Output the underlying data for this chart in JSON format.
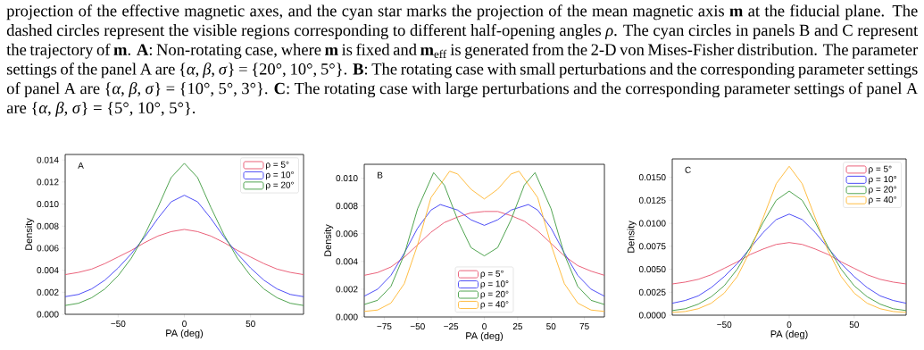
{
  "chart_data": [
    {
      "type": "other",
      "annotations": [
        "projection of the effective magnetic axes, and the cyan star marks the projection of the mean magnetic axis **m** at the fiducial plane. The dashed circles represent the visible regions corresponding to different half-opening angles *ρ*. The cyan circles in panels B and C represent the trajectory of **m**. **A**: Non-rotating case, where **m** is fixed and **m**$_{eff}$ is generated from the 2-D von Mises-Fisher distribution. The parameter settings of the panel A are {*α*, *β*, *σ*} = {20°, 10°, 5°}. **B**: The rotating case with small perturbations and the corresponding parameter settings of panel A are {*α*, *β*, *σ*} = {10°, 5°, 3°}. **C**: The rotating case with large perturbations and the corresponding parameter settings of panel A are {*α*, *β*, *σ*} = {5°, 10°, 5°}."
      ]
    },
    {
      "type": "line",
      "xlabel": "PA (deg)",
      "ylabel": "Density",
      "annotations": [
        "A"
      ],
      "legend": "top right",
      "x": [
        -90,
        -80,
        -70,
        -60,
        -50,
        -40,
        -30,
        -20,
        -10,
        0,
        10,
        20,
        30,
        40,
        50,
        60,
        70,
        80,
        90
      ],
      "xlim": [
        -90,
        90
      ],
      "xticks": [
        {
          "value": -50,
          "label": "−50"
        },
        0,
        50
      ],
      "ylim": [
        0,
        0.0145
      ],
      "yticks": [
        {
          "value": 0,
          "label": "0.000"
        },
        {
          "value": 0.002,
          "label": "0.002"
        },
        {
          "value": 0.004,
          "label": "0.004"
        },
        {
          "value": 0.006,
          "label": "0.006"
        },
        {
          "value": 0.008,
          "label": "0.008"
        },
        {
          "value": 0.01,
          "label": "0.010"
        },
        {
          "value": 0.012,
          "label": "0.012"
        },
        {
          "value": 0.014,
          "label": "0.014"
        }
      ],
      "series": [
        {
          "name": "ρ = 5°",
          "color": "#e8506b",
          "values": [
            0.0036,
            0.0038,
            0.0041,
            0.0046,
            0.0052,
            0.0058,
            0.0065,
            0.0071,
            0.0075,
            0.0077,
            0.0075,
            0.0071,
            0.0065,
            0.0058,
            0.0052,
            0.0046,
            0.0041,
            0.0038,
            0.0036
          ]
        },
        {
          "name": "ρ = 10°",
          "color": "#3b3bf5",
          "values": [
            0.0016,
            0.0018,
            0.0023,
            0.0031,
            0.0042,
            0.0055,
            0.007,
            0.0087,
            0.0102,
            0.0108,
            0.0102,
            0.0087,
            0.007,
            0.0055,
            0.0042,
            0.0031,
            0.0023,
            0.0018,
            0.0016
          ]
        },
        {
          "name": "ρ = 20°",
          "color": "#3d9a3d",
          "values": [
            0.0008,
            0.001,
            0.0015,
            0.0023,
            0.0035,
            0.0051,
            0.0072,
            0.0097,
            0.0124,
            0.0137,
            0.0124,
            0.0097,
            0.0072,
            0.0051,
            0.0035,
            0.0023,
            0.0015,
            0.001,
            0.0008
          ]
        }
      ]
    },
    {
      "type": "line",
      "xlabel": "PA (deg)",
      "ylabel": "Density",
      "annotations": [
        "B"
      ],
      "legend": "bottom",
      "x": [
        -90,
        -80,
        -70,
        -60,
        -50,
        -40,
        -30,
        -20,
        -10,
        0,
        10,
        20,
        30,
        40,
        50,
        60,
        70,
        80,
        90
      ],
      "xlim": [
        -90,
        90
      ],
      "xticks": [
        {
          "value": -75,
          "label": "−75"
        },
        {
          "value": -50,
          "label": "−50"
        },
        {
          "value": -25,
          "label": "−25"
        },
        0,
        25,
        50,
        75
      ],
      "ylim": [
        0,
        0.011
      ],
      "yticks": [
        {
          "value": 0,
          "label": "0.000"
        },
        {
          "value": 0.002,
          "label": "0.002"
        },
        {
          "value": 0.004,
          "label": "0.004"
        },
        {
          "value": 0.006,
          "label": "0.006"
        },
        {
          "value": 0.008,
          "label": "0.008"
        },
        {
          "value": 0.01,
          "label": "0.010"
        }
      ],
      "series": [
        {
          "name": "ρ = 5°",
          "color": "#e8506b",
          "values": [
            0.003,
            0.0032,
            0.0036,
            0.0043,
            0.0052,
            0.0061,
            0.0068,
            0.0072,
            0.0075,
            0.0076,
            0.0076,
            0.0073,
            0.0069,
            0.0062,
            0.0053,
            0.0044,
            0.0037,
            0.0033,
            0.003
          ]
        },
        {
          "name": "ρ = 10°",
          "color": "#3b3bf5",
          "x": [
            -90,
            -80,
            -70,
            -60,
            -50,
            -40,
            -33,
            -20,
            -10,
            0,
            10,
            20,
            33,
            40,
            50,
            60,
            70,
            80,
            90
          ],
          "values": [
            0.0015,
            0.002,
            0.003,
            0.0046,
            0.0064,
            0.0077,
            0.0081,
            0.0077,
            0.007,
            0.0066,
            0.007,
            0.0077,
            0.0081,
            0.0077,
            0.0064,
            0.0046,
            0.003,
            0.002,
            0.0015
          ]
        },
        {
          "name": "ρ = 20°",
          "color": "#3d9a3d",
          "x": [
            -90,
            -80,
            -70,
            -60,
            -50,
            -38,
            -30,
            -20,
            -10,
            0,
            10,
            20,
            30,
            38,
            50,
            60,
            70,
            80,
            90
          ],
          "values": [
            0.0009,
            0.0012,
            0.0022,
            0.0045,
            0.0078,
            0.0104,
            0.0095,
            0.007,
            0.005,
            0.0044,
            0.005,
            0.007,
            0.0095,
            0.0104,
            0.0078,
            0.0045,
            0.0022,
            0.0012,
            0.0009
          ]
        },
        {
          "name": "ρ = 40°",
          "color": "#ffb52e",
          "x": [
            -90,
            -80,
            -70,
            -60,
            -50,
            -40,
            -26,
            -20,
            -10,
            0,
            10,
            20,
            26,
            40,
            50,
            60,
            70,
            80,
            90
          ],
          "values": [
            0.0004,
            0.0005,
            0.001,
            0.0024,
            0.0052,
            0.0086,
            0.0105,
            0.0103,
            0.0092,
            0.0085,
            0.0092,
            0.0103,
            0.0105,
            0.0086,
            0.0052,
            0.0024,
            0.001,
            0.0005,
            0.0004
          ]
        }
      ]
    },
    {
      "type": "line",
      "xlabel": "PA (deg)",
      "ylabel": "Density",
      "annotations": [
        "C"
      ],
      "legend": "top right",
      "x": [
        -90,
        -80,
        -70,
        -60,
        -50,
        -40,
        -30,
        -20,
        -10,
        0,
        10,
        20,
        30,
        40,
        50,
        60,
        70,
        80,
        90
      ],
      "xlim": [
        -90,
        90
      ],
      "xticks": [
        {
          "value": -50,
          "label": "−50"
        },
        0,
        50
      ],
      "ylim": [
        0,
        0.017
      ],
      "yticks": [
        {
          "value": 0,
          "label": "0.0000"
        },
        {
          "value": 0.0025,
          "label": "0.0025"
        },
        {
          "value": 0.005,
          "label": "0.0050"
        },
        {
          "value": 0.0075,
          "label": "0.0075"
        },
        {
          "value": 0.01,
          "label": "0.0100"
        },
        {
          "value": 0.0125,
          "label": "0.0125"
        },
        {
          "value": 0.015,
          "label": "0.0150"
        }
      ],
      "series": [
        {
          "name": "ρ = 5°",
          "color": "#e8506b",
          "values": [
            0.0034,
            0.0036,
            0.0039,
            0.0044,
            0.0051,
            0.0058,
            0.0066,
            0.0072,
            0.0077,
            0.0079,
            0.0077,
            0.0072,
            0.0066,
            0.0058,
            0.0051,
            0.0044,
            0.0039,
            0.0036,
            0.0034
          ]
        },
        {
          "name": "ρ = 10°",
          "color": "#3b3bf5",
          "values": [
            0.0013,
            0.0016,
            0.0021,
            0.003,
            0.0042,
            0.0056,
            0.0073,
            0.009,
            0.0104,
            0.011,
            0.0104,
            0.009,
            0.0073,
            0.0056,
            0.0042,
            0.003,
            0.0021,
            0.0016,
            0.0013
          ]
        },
        {
          "name": "ρ = 20°",
          "color": "#3d9a3d",
          "values": [
            0.0005,
            0.0007,
            0.0012,
            0.002,
            0.0032,
            0.005,
            0.0074,
            0.0101,
            0.0125,
            0.0135,
            0.0125,
            0.0101,
            0.0074,
            0.005,
            0.0032,
            0.002,
            0.0012,
            0.0007,
            0.0005
          ]
        },
        {
          "name": "ρ = 40°",
          "color": "#ffb52e",
          "values": [
            0.0003,
            0.0004,
            0.0007,
            0.0013,
            0.0024,
            0.0042,
            0.007,
            0.0106,
            0.0143,
            0.0162,
            0.0143,
            0.0106,
            0.007,
            0.0042,
            0.0024,
            0.0013,
            0.0007,
            0.0004,
            0.0003
          ]
        }
      ]
    }
  ]
}
